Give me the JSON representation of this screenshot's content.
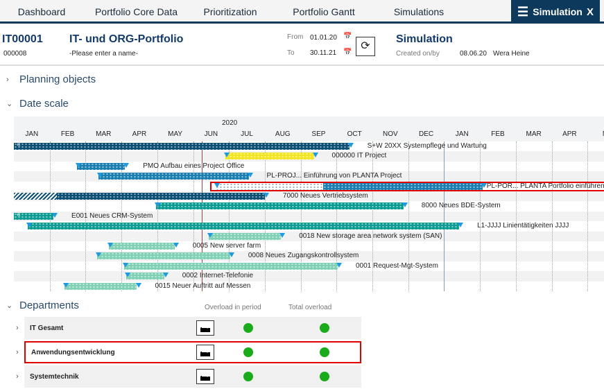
{
  "tabs": [
    {
      "label": "Dashboard"
    },
    {
      "label": "Portfolio Core Data"
    },
    {
      "label": "Prioritization"
    },
    {
      "label": "Portfolio Gantt"
    },
    {
      "label": "Simulations"
    }
  ],
  "active_tab": {
    "label": "Simulation",
    "menu_icon": "hamburger-icon",
    "close": "X"
  },
  "header": {
    "id": "IT00001",
    "title": "IT- und ORG-Portfolio",
    "sub_id": "000008",
    "name_placeholder": "-Please enter a name-",
    "from_label": "From",
    "from": "01.01.20",
    "to_label": "To",
    "to": "30.11.21",
    "sim_title": "Simulation",
    "created_label": "Created on/by",
    "created_date": "08.06.20",
    "created_by": "Wera Heine"
  },
  "sections": {
    "planning": "Planning objects",
    "datescale": "Date scale",
    "departments": "Departments"
  },
  "gantt": {
    "year": "2020",
    "months": [
      "JAN",
      "FEB",
      "MAR",
      "APR",
      "MAY",
      "JUN",
      "JUL",
      "AUG",
      "SEP",
      "OCT",
      "NOV",
      "DEC",
      "JAN",
      "FEB",
      "MAR",
      "APR",
      "M"
    ],
    "today": "2020-06-08",
    "colors": {
      "navy": "#0b4f74",
      "blue": "#1a7fb0",
      "yellow": "#f2e41e",
      "teal": "#0a9b92",
      "mint": "#7fd0b5",
      "highlight": "#e00000"
    },
    "bars": [
      {
        "label": "S+W 20XX Systempflege und Wartung",
        "start": "2020-01-01",
        "end": "2020-10-12",
        "color": "navy",
        "cont": true
      },
      {
        "label": "000000 IT Project",
        "start": "2020-06-28",
        "end": "2020-09-12",
        "color": "yellow"
      },
      {
        "label": "PMO Aufbau eines Project Office",
        "start": "2020-02-23",
        "end": "2020-04-04",
        "color": "blue"
      },
      {
        "label": "PL-PROJ... Einführung von PLANTA Project",
        "start": "2020-03-12",
        "end": "2020-07-18",
        "color": "blue"
      },
      {
        "label": "PL-POR... PLANTA Portfolio einführen",
        "start": "2020-06-20",
        "mid": "2020-09-20",
        "end": "2021-02-03",
        "color": "blue",
        "highlight": true
      },
      {
        "label": "7000 Neues Vertriebsystem",
        "start": "2020-01-01",
        "hatch_end": "2020-02-07",
        "end": "2020-08-01",
        "color": "navy"
      },
      {
        "label": "8000 Neues BDE-System",
        "start": "2020-04-30",
        "end": "2020-11-27",
        "color": "teal"
      },
      {
        "label": "E001 Neues CRM-System",
        "start": "2020-01-01",
        "end": "2020-02-04",
        "color": "teal",
        "cont": true
      },
      {
        "label": "L1-JJJJ Linientätigkeiten JJJJ",
        "start": "2020-01-13",
        "end": "2021-01-14",
        "color": "teal"
      },
      {
        "label": "0018 New storage area network system (SAN)",
        "start": "2020-06-14",
        "end": "2020-08-15",
        "color": "mint"
      },
      {
        "label": "0005 New server farm",
        "start": "2020-03-21",
        "end": "2020-05-16",
        "color": "mint"
      },
      {
        "label": "0008 Neues Zugangskontrollsystem",
        "start": "2020-03-11",
        "end": "2020-07-02",
        "color": "mint"
      },
      {
        "label": "0001 Request-Mgt-System",
        "start": "2020-04-03",
        "end": "2020-10-02",
        "color": "mint"
      },
      {
        "label": "0002 Internet-Telefonie",
        "start": "2020-04-05",
        "end": "2020-05-07",
        "color": "mint"
      },
      {
        "label": "0015 Neuer Auftritt auf Messen",
        "start": "2020-02-13",
        "end": "2020-04-14",
        "color": "mint"
      }
    ]
  },
  "departments": {
    "col1": "Overload in period",
    "col2": "Total overload",
    "status_color": "#1aab1a",
    "rows": [
      {
        "name": "IT Gesamt",
        "overload_period": "ok",
        "total_overload": "ok"
      },
      {
        "name": "Anwendungsentwicklung",
        "overload_period": "ok",
        "total_overload": "ok",
        "highlight": true
      },
      {
        "name": "Systemtechnik",
        "overload_period": "ok",
        "total_overload": "ok"
      }
    ]
  }
}
